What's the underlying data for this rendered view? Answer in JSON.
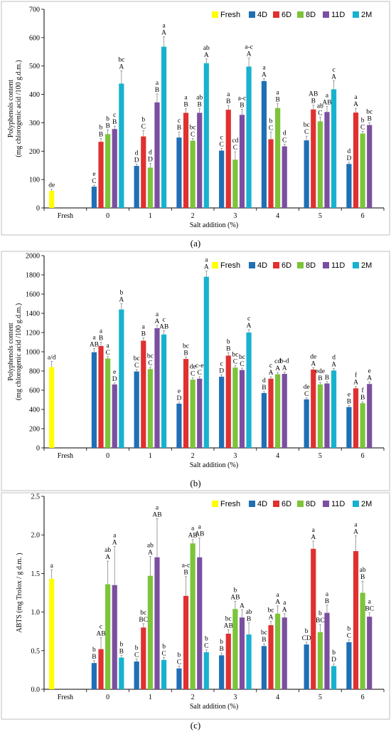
{
  "colors": {
    "Fresh": "#ffff00",
    "4D": "#1f6fb5",
    "6D": "#e03030",
    "8D": "#7cc43a",
    "11D": "#7b4fa0",
    "2M": "#17b2cf"
  },
  "chart_data": [
    {
      "type": "bar",
      "caption": "(a)",
      "ylabel": [
        "Polyphenols content",
        "(mg chlorogenic acid /100 g.d.m.)"
      ],
      "xlabel": "Salt addition (%)",
      "ylim": [
        0,
        700
      ],
      "yticks": [
        "0",
        "100",
        "200",
        "300",
        "400",
        "500",
        "600",
        "700"
      ],
      "legend_position": "top-right",
      "fresh": {
        "name": "Fresh",
        "label": "Fresh",
        "value": 60,
        "err": 6,
        "letters": [
          "de"
        ]
      },
      "series_names": [
        "4D",
        "6D",
        "8D",
        "11D",
        "2M"
      ],
      "categories": [
        "0",
        "1",
        "2",
        "3",
        "4",
        "5",
        "6"
      ],
      "series": [
        {
          "name": "4D",
          "values": [
            75,
            148,
            248,
            202,
            447,
            238,
            155
          ],
          "err": [
            5,
            6,
            20,
            8,
            8,
            15,
            6
          ],
          "letters": [
            [
              "e",
              "C"
            ],
            [
              "d",
              "D"
            ],
            [
              "c",
              "B"
            ],
            [
              "c",
              "C"
            ],
            [
              "a",
              "A"
            ],
            [
              "bc",
              "C"
            ],
            [
              "d",
              "D"
            ]
          ]
        },
        {
          "name": "6D",
          "values": [
            233,
            252,
            335,
            346,
            242,
            347,
            336
          ],
          "err": [
            12,
            20,
            15,
            15,
            25,
            15,
            15
          ],
          "letters": [
            [
              "b",
              "B"
            ],
            [
              "b",
              "C"
            ],
            [
              "a",
              "B"
            ],
            [
              "a",
              "B"
            ],
            [
              "b",
              "C"
            ],
            [
              "AB",
              "B"
            ],
            [
              "a",
              "A"
            ]
          ]
        },
        {
          "name": "8D",
          "values": [
            260,
            142,
            237,
            170,
            352,
            305,
            262
          ],
          "err": [
            15,
            15,
            8,
            28,
            15,
            15,
            8
          ],
          "letters": [
            [
              "b",
              "B"
            ],
            [
              "d",
              "D"
            ],
            [
              "bc",
              "C"
            ],
            [
              "cd",
              "C"
            ],
            [
              "a",
              "B"
            ],
            [
              "ab",
              "C"
            ],
            [
              "b",
              "C"
            ]
          ]
        },
        {
          "name": "11D",
          "values": [
            278,
            372,
            335,
            328,
            217,
            338,
            292
          ],
          "err": [
            10,
            30,
            15,
            20,
            8,
            20,
            8
          ],
          "letters": [
            [
              "c",
              "B"
            ],
            [
              "a",
              "B"
            ],
            [
              "ab",
              "B"
            ],
            [
              "a-c",
              "B"
            ],
            [
              "d",
              "C"
            ],
            [
              "a",
              "AB"
            ],
            [
              "bc",
              "B"
            ]
          ]
        },
        {
          "name": "2M",
          "values": [
            438,
            568,
            510,
            498,
            0,
            418,
            0
          ],
          "err": [
            45,
            35,
            15,
            30,
            0,
            30,
            0
          ],
          "letters": [
            [
              "bc",
              "A"
            ],
            [
              "a",
              "A"
            ],
            [
              "ab",
              "A"
            ],
            [
              "a-c",
              "A"
            ],
            [],
            [
              "c",
              "A"
            ],
            []
          ]
        }
      ]
    },
    {
      "type": "bar",
      "caption": "(b)",
      "ylabel": [
        "Polyphenols content",
        "(mg chlorogenic acid /100 g.d.m.)"
      ],
      "xlabel": "Salt addition (%)",
      "ylim": [
        0,
        2000
      ],
      "yticks": [
        "0",
        "200",
        "400",
        "600",
        "800",
        "1000",
        "1200",
        "1400",
        "1600",
        "1800",
        "2000"
      ],
      "legend_position": "top-right",
      "fresh": {
        "name": "Fresh",
        "label": "Fresh",
        "value": 840,
        "err": 60,
        "letters": [
          "a/d"
        ]
      },
      "series_names": [
        "4D",
        "6D",
        "8D",
        "11D",
        "2M"
      ],
      "categories": [
        "0",
        "1",
        "2",
        "3",
        "4",
        "5",
        "6"
      ],
      "series": [
        {
          "name": "4D",
          "values": [
            995,
            795,
            460,
            740,
            570,
            505,
            425
          ],
          "err": [
            40,
            20,
            15,
            20,
            15,
            15,
            15
          ],
          "letters": [
            [
              "a",
              "AB"
            ],
            [
              "bc",
              "C"
            ],
            [
              "e",
              "D"
            ],
            [
              "c",
              "D"
            ],
            [
              "d",
              "B"
            ],
            [
              "de",
              "C"
            ],
            [
              "e",
              "B"
            ]
          ]
        },
        {
          "name": "6D",
          "values": [
            1060,
            1115,
            925,
            960,
            720,
            815,
            620
          ],
          "err": [
            40,
            30,
            20,
            30,
            20,
            20,
            20
          ],
          "letters": [
            [
              "a",
              "B"
            ],
            [
              "a",
              "B"
            ],
            [
              "bc",
              "B"
            ],
            [
              "b",
              "B"
            ],
            [
              "c",
              "A"
            ],
            [
              "de",
              "A"
            ],
            [
              "f",
              "A"
            ]
          ]
        },
        {
          "name": "8D",
          "values": [
            930,
            820,
            710,
            835,
            765,
            660,
            465
          ],
          "err": [
            20,
            20,
            20,
            20,
            20,
            20,
            15
          ],
          "letters": [
            [
              "a",
              "C"
            ],
            [
              "bc",
              "C"
            ],
            [
              "de",
              "C"
            ],
            [
              "bc",
              "C"
            ],
            [
              "cd",
              "A"
            ],
            [
              "ede",
              "B"
            ],
            [
              "f",
              "B"
            ]
          ]
        },
        {
          "name": "11D",
          "values": [
            660,
            1245,
            720,
            810,
            770,
            670,
            665
          ],
          "err": [
            15,
            30,
            20,
            20,
            20,
            20,
            20
          ],
          "letters": [
            [
              "e",
              "D"
            ],
            [
              "a",
              "A"
            ],
            [
              "c-e",
              "C"
            ],
            [
              "bc",
              "C"
            ],
            [
              "b-d",
              "A"
            ],
            [
              "B",
              ""
            ],
            [
              "e",
              "A"
            ]
          ]
        },
        {
          "name": "2M",
          "values": [
            1440,
            1180,
            1780,
            1200,
            0,
            805,
            0
          ],
          "err": [
            60,
            40,
            60,
            30,
            0,
            20,
            0
          ],
          "letters": [
            [
              "b",
              "A"
            ],
            [
              "c",
              "AB"
            ],
            [
              "a",
              "A"
            ],
            [
              "c",
              "A"
            ],
            [],
            [
              "d",
              "A"
            ],
            []
          ]
        }
      ]
    },
    {
      "type": "bar",
      "caption": "(c)",
      "ylabel": [
        "ABTS  (mg Trolox / g d.m. )"
      ],
      "xlabel": "Salt addition (%)",
      "ylim": [
        0,
        2.5
      ],
      "yticks": [
        "0.0",
        "0.5",
        "1.0",
        "1.5",
        "2.0",
        "2.5"
      ],
      "legend_position": "top-right",
      "fresh": {
        "name": "Fresh",
        "label": "Fresh",
        "value": 1.43,
        "err": 0.12,
        "letters": [
          "a"
        ]
      },
      "series_names": [
        "4D",
        "6D",
        "8D",
        "11D",
        "2M"
      ],
      "categories": [
        "0",
        "1",
        "2",
        "3",
        "4",
        "5",
        "6"
      ],
      "series": [
        {
          "name": "4D",
          "values": [
            0.34,
            0.36,
            0.27,
            0.44,
            0.56,
            0.58,
            0.61
          ],
          "err": [
            0.03,
            0.03,
            0.03,
            0.03,
            0.03,
            0.03,
            0.03
          ],
          "letters": [
            [
              "b",
              "B"
            ],
            [
              "b",
              "C"
            ],
            [
              "b",
              "C"
            ],
            [
              "b",
              "B"
            ],
            [
              "bc",
              "B"
            ],
            [
              "b",
              "CD"
            ],
            [
              "b",
              "C"
            ]
          ]
        },
        {
          "name": "6D",
          "values": [
            0.52,
            0.8,
            1.21,
            0.72,
            0.83,
            1.82,
            1.79
          ],
          "err": [
            0.15,
            0.05,
            0.25,
            0.05,
            0.05,
            0.1,
            0.2
          ],
          "letters": [
            [
              "c",
              "AB"
            ],
            [
              "bc",
              "BC"
            ],
            [
              "a-c",
              "B"
            ],
            [
              "bc",
              "AB"
            ],
            [
              "bc",
              "A"
            ],
            [
              "a",
              "A"
            ],
            [
              "a",
              "A"
            ]
          ]
        },
        {
          "name": "8D",
          "values": [
            1.36,
            1.47,
            1.89,
            1.04,
            0.98,
            0.74,
            1.25
          ],
          "err": [
            0.3,
            0.25,
            0.05,
            0.1,
            0.1,
            0.1,
            0.15
          ],
          "letters": [
            [
              "ab",
              "A"
            ],
            [
              "ab",
              "A"
            ],
            [
              "a",
              "AB"
            ],
            [
              "b",
              "AB"
            ],
            [
              "a",
              "A"
            ],
            [
              "b",
              "BC"
            ],
            [
              "ab",
              "B"
            ]
          ]
        },
        {
          "name": "11D",
          "values": [
            1.35,
            1.71,
            1.71,
            0.93,
            0.93,
            0.99,
            0.94
          ],
          "err": [
            0.5,
            0.5,
            0.25,
            0.1,
            0.05,
            0.1,
            0.05
          ],
          "letters": [
            [
              "a",
              "A"
            ],
            [
              "a",
              "AB"
            ],
            [
              "a",
              "AB"
            ],
            [
              "A",
              ""
            ],
            [
              "a",
              "A"
            ],
            [
              "a",
              "B"
            ],
            [
              "a",
              "BC"
            ]
          ]
        },
        {
          "name": "2M",
          "values": [
            0.41,
            0.38,
            0.48,
            0.71,
            0,
            0.3,
            0
          ],
          "err": [
            0.03,
            0.03,
            0.03,
            0.15,
            0,
            0.03,
            0
          ],
          "letters": [
            [
              "b",
              "B"
            ],
            [
              "b",
              "C"
            ],
            [
              "b",
              "C"
            ],
            [
              "ab",
              "B"
            ],
            [],
            [
              "b",
              "D"
            ],
            []
          ]
        }
      ]
    }
  ]
}
